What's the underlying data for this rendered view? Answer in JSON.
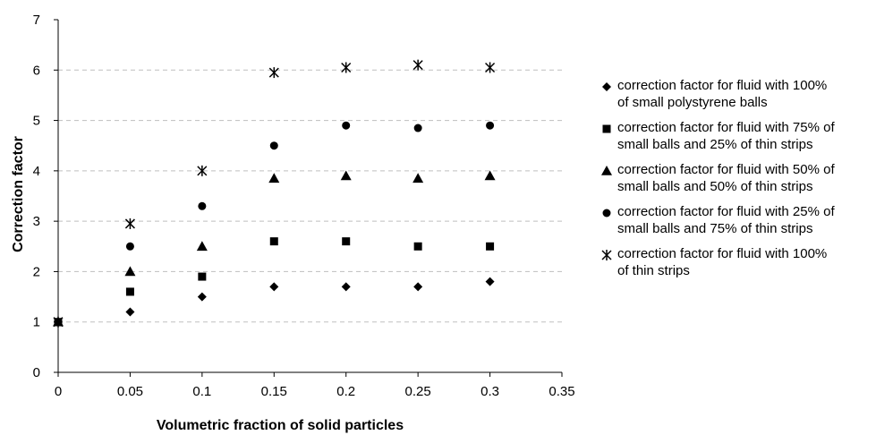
{
  "chart_data": {
    "type": "scatter",
    "title": "",
    "xlabel": "Volumetric fraction of solid particles",
    "ylabel": "Correction factor",
    "xlim": [
      0,
      0.35
    ],
    "ylim": [
      0,
      7
    ],
    "x_ticks": [
      0,
      0.05,
      0.1,
      0.15,
      0.2,
      0.25,
      0.3,
      0.35
    ],
    "x_tick_labels": [
      "0",
      "0.05",
      "0.1",
      "0.15",
      "0.2",
      "0.25",
      "0.3",
      "0.35"
    ],
    "y_ticks": [
      0,
      1,
      2,
      3,
      4,
      5,
      6,
      7
    ],
    "y_tick_labels": [
      "0",
      "1",
      "2",
      "3",
      "4",
      "5",
      "6",
      "7"
    ],
    "grid": "horizontal dashed",
    "legend_position": "right",
    "x": [
      0,
      0.05,
      0.1,
      0.15,
      0.2,
      0.25,
      0.3
    ],
    "series": [
      {
        "name": "correction factor for fluid with 100%\nof small polystyrene balls",
        "marker": "diamond",
        "values": [
          1.0,
          1.2,
          1.5,
          1.7,
          1.7,
          1.7,
          1.8
        ]
      },
      {
        "name": "correction factor for fluid with 75% of\nsmall balls and 25% of thin strips",
        "marker": "square",
        "values": [
          1.0,
          1.6,
          1.9,
          2.6,
          2.6,
          2.5,
          2.5
        ]
      },
      {
        "name": "correction factor for fluid with 50% of\nsmall balls and 50% of thin strips",
        "marker": "triangle",
        "values": [
          1.0,
          2.0,
          2.5,
          3.85,
          3.9,
          3.85,
          3.9
        ]
      },
      {
        "name": "correction factor for fluid with 25% of\nsmall balls and 75% of thin strips",
        "marker": "circle",
        "values": [
          1.0,
          2.5,
          3.3,
          4.5,
          4.9,
          4.85,
          4.9
        ]
      },
      {
        "name": "correction factor for fluid with 100%\nof thin strips",
        "marker": "star",
        "values": [
          1.0,
          2.95,
          4.0,
          5.95,
          6.05,
          6.1,
          6.05
        ]
      }
    ]
  },
  "colors": {
    "marker": "#000000",
    "grid": "#bfbfbf",
    "axis": "#000000",
    "background": "#ffffff"
  }
}
